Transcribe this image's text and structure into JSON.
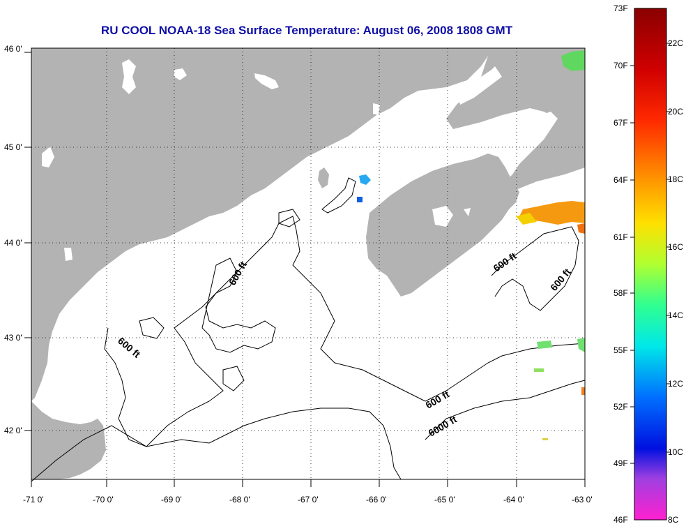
{
  "title": "RU COOL  NOAA-18  Sea Surface Temperature:  August 06, 2008 1808 GMT",
  "title_color": "#1010a8",
  "land_color": "#b3b3b3",
  "map": {
    "lon_range": [
      -71,
      -63
    ],
    "lat_range": [
      41.5,
      46
    ],
    "x_ticks": [
      "-71 0'",
      "-70 0'",
      "-69 0'",
      "-68 0'",
      "-67 0'",
      "-66 0'",
      "-65 0'",
      "-64 0'",
      "-63 0'"
    ],
    "y_ticks": [
      "46 0'",
      "45 0'",
      "44 0'",
      "43 0'",
      "42 0'"
    ],
    "grid": "dotted",
    "contour_labels": [
      "600 ft",
      "600 ft",
      "600 ft",
      "600 ft",
      "600 ft",
      "6000 ft"
    ]
  },
  "colorbar": {
    "f_labels": [
      "73F",
      "70F",
      "67F",
      "64F",
      "61F",
      "58F",
      "55F",
      "52F",
      "49F",
      "46F"
    ],
    "c_labels": [
      "22C",
      "20C",
      "18C",
      "16C",
      "14C",
      "12C",
      "10C",
      "8C"
    ]
  }
}
